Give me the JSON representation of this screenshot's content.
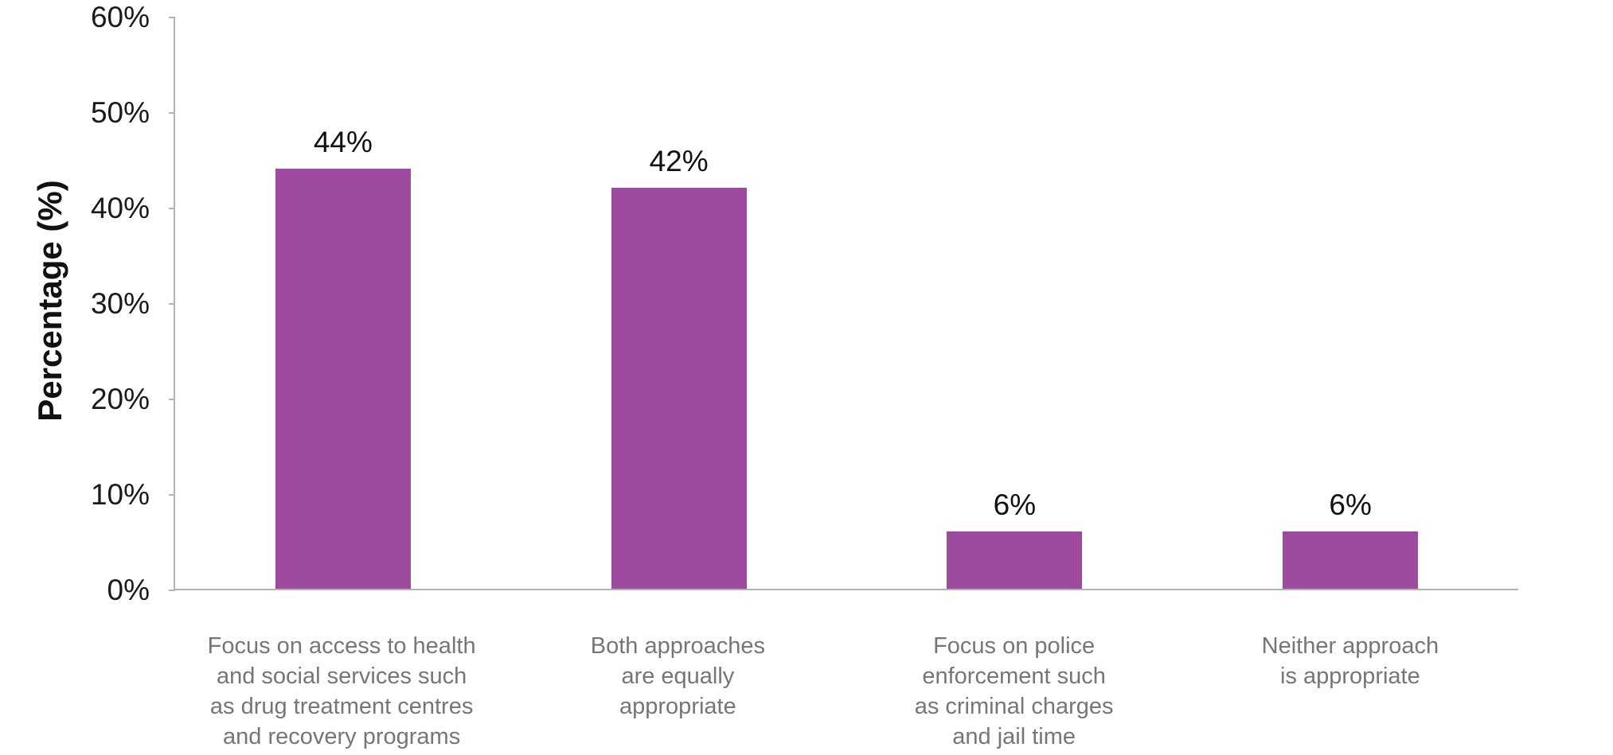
{
  "chart_data": {
    "type": "bar",
    "title": "",
    "xlabel": "",
    "ylabel": "Percentage (%)",
    "categories": [
      "Focus on access to health\nand social services such\nas drug treatment centres\nand recovery programs",
      "Both approaches\nare equally\nappropriate",
      "Focus on police\nenforcement such\nas criminal charges\nand jail time",
      "Neither approach\nis appropriate"
    ],
    "values": [
      44,
      42,
      6,
      6
    ],
    "value_labels": [
      "44%",
      "42%",
      "6%",
      "6%"
    ],
    "ylim": [
      0,
      60
    ],
    "yticks": [
      0,
      10,
      20,
      30,
      40,
      50,
      60
    ],
    "ytick_labels": [
      "0%",
      "10%",
      "20%",
      "30%",
      "40%",
      "50%",
      "60%"
    ],
    "grid": false,
    "legend": false,
    "bar_color": "#9e4b9f",
    "axis_color": "#b3b3b3",
    "tick_label_color": "#1a1a1a",
    "value_label_color": "#111111",
    "category_label_color": "#767676"
  }
}
